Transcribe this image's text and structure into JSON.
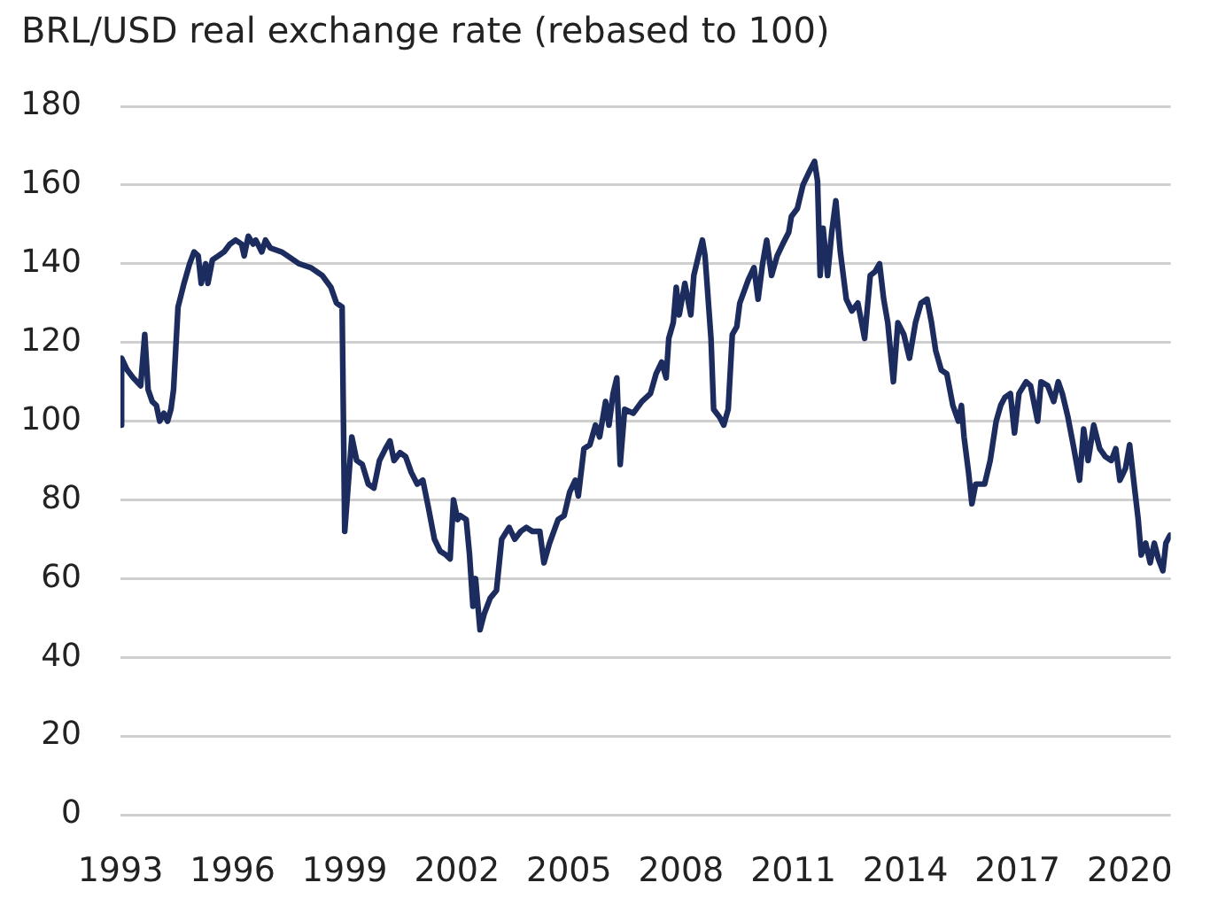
{
  "chart_data": {
    "type": "line",
    "title": "BRL/USD real exchange rate (rebased to 100)",
    "x": [
      1993.0,
      1993.03,
      1993.18,
      1993.34,
      1993.54,
      1993.65,
      1993.74,
      1993.85,
      1993.96,
      1994.05,
      1994.16,
      1994.26,
      1994.35,
      1994.42,
      1994.54,
      1994.7,
      1994.85,
      1994.97,
      1995.08,
      1995.16,
      1995.28,
      1995.34,
      1995.46,
      1995.62,
      1995.77,
      1995.93,
      1996.08,
      1996.24,
      1996.31,
      1996.42,
      1996.55,
      1996.62,
      1996.78,
      1996.88,
      1997.01,
      1997.31,
      1997.47,
      1997.78,
      1998.09,
      1998.4,
      1998.63,
      1998.78,
      1998.93,
      1999.0,
      1999.19,
      1999.32,
      1999.47,
      1999.63,
      1999.78,
      1999.93,
      2000.09,
      2000.21,
      2000.32,
      2000.48,
      2000.63,
      2000.78,
      2000.94,
      2001.09,
      2001.24,
      2001.4,
      2001.55,
      2001.71,
      2001.82,
      2001.91,
      2002.02,
      2002.09,
      2002.25,
      2002.34,
      2002.43,
      2002.5,
      2002.62,
      2002.73,
      2002.89,
      2003.06,
      2003.2,
      2003.4,
      2003.55,
      2003.71,
      2003.86,
      2004.02,
      2004.22,
      2004.33,
      2004.48,
      2004.71,
      2004.87,
      2005.02,
      2005.17,
      2005.25,
      2005.4,
      2005.56,
      2005.71,
      2005.82,
      2005.98,
      2006.07,
      2006.18,
      2006.28,
      2006.37,
      2006.49,
      2006.72,
      2006.95,
      2007.18,
      2007.33,
      2007.48,
      2007.6,
      2007.67,
      2007.79,
      2007.87,
      2007.95,
      2008.1,
      2008.26,
      2008.34,
      2008.49,
      2008.57,
      2008.64,
      2008.8,
      2008.87,
      2009.03,
      2009.14,
      2009.26,
      2009.37,
      2009.49,
      2009.57,
      2009.8,
      2009.95,
      2010.06,
      2010.18,
      2010.29,
      2010.42,
      2010.57,
      2010.72,
      2010.88,
      2010.95,
      2011.11,
      2011.26,
      2011.41,
      2011.57,
      2011.65,
      2011.72,
      2011.8,
      2011.92,
      2012.03,
      2012.14,
      2012.26,
      2012.42,
      2012.57,
      2012.73,
      2012.91,
      2013.06,
      2013.19,
      2013.31,
      2013.42,
      2013.53,
      2013.68,
      2013.8,
      2013.96,
      2014.11,
      2014.27,
      2014.42,
      2014.58,
      2014.7,
      2014.81,
      2014.96,
      2015.11,
      2015.27,
      2015.42,
      2015.5,
      2015.57,
      2015.69,
      2015.78,
      2015.88,
      2016.12,
      2016.27,
      2016.43,
      2016.55,
      2016.66,
      2016.81,
      2016.92,
      2017.04,
      2017.23,
      2017.35,
      2017.54,
      2017.63,
      2017.81,
      2017.97,
      2018.09,
      2018.2,
      2018.35,
      2018.51,
      2018.66,
      2018.77,
      2018.89,
      2019.04,
      2019.2,
      2019.35,
      2019.51,
      2019.63,
      2019.74,
      2019.89,
      2020.0,
      2020.12,
      2020.23,
      2020.31,
      2020.43,
      2020.55,
      2020.66,
      2020.77,
      2020.89,
      2020.97,
      2021.08
    ],
    "values": [
      99,
      116,
      113,
      111,
      109,
      122,
      108,
      105,
      104,
      100,
      102,
      100,
      103,
      108,
      129,
      135,
      140,
      143,
      142,
      135,
      140,
      135,
      141,
      142,
      143,
      145,
      146,
      145,
      142,
      147,
      145,
      146,
      143,
      146,
      144,
      143,
      142,
      140,
      139,
      137,
      134,
      130,
      129,
      72,
      96,
      90,
      89,
      84,
      83,
      90,
      93,
      95,
      90,
      92,
      91,
      87,
      84,
      85,
      78,
      70,
      67,
      66,
      65,
      80,
      75,
      76,
      75,
      66,
      53,
      60,
      47,
      51,
      55,
      57,
      70,
      73,
      70,
      72,
      73,
      72,
      72,
      64,
      69,
      75,
      76,
      82,
      85,
      81,
      93,
      94,
      99,
      96,
      105,
      99,
      107,
      111,
      89,
      103,
      102,
      105,
      107,
      112,
      115,
      111,
      121,
      125,
      134,
      127,
      135,
      127,
      137,
      143,
      146,
      142,
      121,
      103,
      101,
      99,
      103,
      122,
      124,
      130,
      136,
      139,
      131,
      140,
      146,
      137,
      142,
      145,
      148,
      152,
      154,
      160,
      163,
      166,
      161,
      137,
      149,
      137,
      148,
      156,
      143,
      131,
      128,
      130,
      121,
      137,
      138,
      140,
      131,
      125,
      110,
      125,
      122,
      116,
      125,
      130,
      131,
      125,
      118,
      113,
      112,
      104,
      100,
      104,
      96,
      87,
      79,
      84,
      84,
      90,
      100,
      104,
      106,
      107,
      97,
      107,
      110,
      109,
      100,
      110,
      109,
      105,
      110,
      107,
      101,
      93,
      85,
      98,
      90,
      99,
      93,
      91,
      90,
      93,
      85,
      88,
      94,
      84,
      75,
      66,
      69,
      64,
      69,
      65,
      62,
      69,
      71
    ],
    "color": "#1d2c5e",
    "xlim": [
      1993,
      2021.1
    ],
    "xticks": [
      1993,
      1996,
      1999,
      2002,
      2005,
      2008,
      2011,
      2014,
      2017,
      2020
    ],
    "ylim": [
      0,
      180
    ],
    "yticks": [
      0,
      20,
      40,
      60,
      80,
      100,
      120,
      140,
      160,
      180
    ],
    "grid": "y",
    "marker": "none",
    "line_style": "solid"
  }
}
